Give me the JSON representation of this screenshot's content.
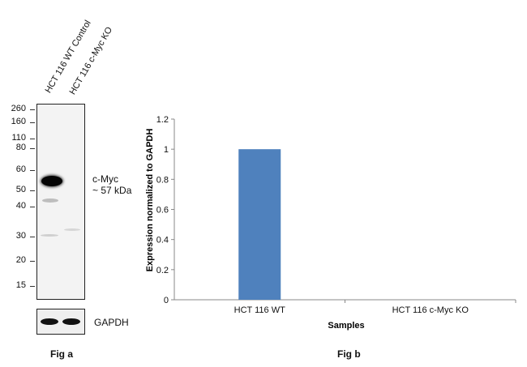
{
  "fig_a": {
    "lanes": [
      "HCT 116 WT Control",
      "HCT 116 c-Myc KO"
    ],
    "markers": [
      "260",
      "160",
      "110",
      "80",
      "60",
      "50",
      "40",
      "30",
      "20",
      "15"
    ],
    "band_label_line1": "c-Myc",
    "band_label_line2": "~ 57 kDa",
    "loading_label": "GAPDH",
    "caption": "Fig a"
  },
  "fig_b": {
    "caption": "Fig b"
  },
  "chart_data": {
    "type": "bar",
    "categories": [
      "HCT 116 WT",
      "HCT 116 c-Myc  KO"
    ],
    "values": [
      1,
      0
    ],
    "xlabel": "Samples",
    "ylabel": "Expression  normalized to GAPDH",
    "ylim": [
      0,
      1.2
    ],
    "yticks": [
      "0",
      "0.2",
      "0.4",
      "0.6",
      "0.8",
      "1",
      "1.2"
    ],
    "bar_color": "#4f81bd",
    "grid": false,
    "legend": "none"
  }
}
